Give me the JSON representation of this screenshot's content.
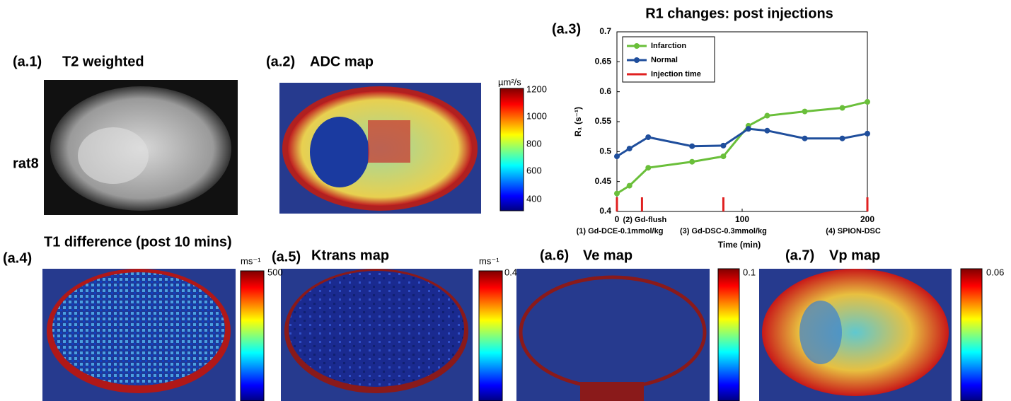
{
  "panels": [
    {
      "label": "(a.1)",
      "title": "T2 weighted",
      "row_label": "rat8"
    },
    {
      "label": "(a.2)",
      "title": "ADC map",
      "colorbar": {
        "unit": "µm²/s",
        "ticks": [
          "1200",
          "1000",
          "800",
          "600",
          "400"
        ]
      }
    },
    {
      "label": "(a.4)",
      "title": "T1 difference (post 10 mins)",
      "colorbar": {
        "unit": "ms⁻¹",
        "ticks": [
          "500"
        ]
      }
    },
    {
      "label": "(a.5)",
      "title": "Ktrans map",
      "colorbar": {
        "unit": "ms⁻¹",
        "ticks": [
          "0.4"
        ]
      }
    },
    {
      "label": "(a.6)",
      "title": "Ve map",
      "colorbar": {
        "ticks": [
          "0.1"
        ]
      }
    },
    {
      "label": "(a.7)",
      "title": "Vp map",
      "colorbar": {
        "ticks": [
          "0.06"
        ]
      }
    }
  ],
  "chart_data": {
    "type": "line",
    "panel_label": "(a.3)",
    "title": "R1 changes: post injections",
    "x_label": "Time (min)",
    "y_label": "R₁ (s⁻¹)",
    "xlim": [
      0,
      200
    ],
    "xticks": [
      0,
      100,
      200
    ],
    "ylim": [
      0.4,
      0.7
    ],
    "yticks": [
      0.4,
      0.45,
      0.5,
      0.55,
      0.6,
      0.65,
      0.7
    ],
    "series": [
      {
        "name": "Infarction",
        "color": "#6abf3a",
        "x": [
          0,
          10,
          25,
          60,
          85,
          105,
          120,
          150,
          180,
          200
        ],
        "values": [
          0.43,
          0.443,
          0.473,
          0.483,
          0.492,
          0.543,
          0.56,
          0.567,
          0.573,
          0.583
        ]
      },
      {
        "name": "Normal",
        "color": "#1f4e9c",
        "x": [
          0,
          10,
          25,
          60,
          85,
          105,
          120,
          150,
          180,
          200
        ],
        "values": [
          0.492,
          0.505,
          0.524,
          0.509,
          0.51,
          0.538,
          0.535,
          0.522,
          0.522,
          0.53
        ]
      }
    ],
    "injections": {
      "name": "Injection time",
      "color": "#e02020",
      "x": [
        0,
        20,
        85,
        200
      ],
      "labels": [
        "(1) Gd-DCE-0.1mmol/kg",
        "(2) Gd-flush",
        "(3) Gd-DSC-0.3mmol/kg",
        "(4) SPION-DSC"
      ]
    }
  }
}
